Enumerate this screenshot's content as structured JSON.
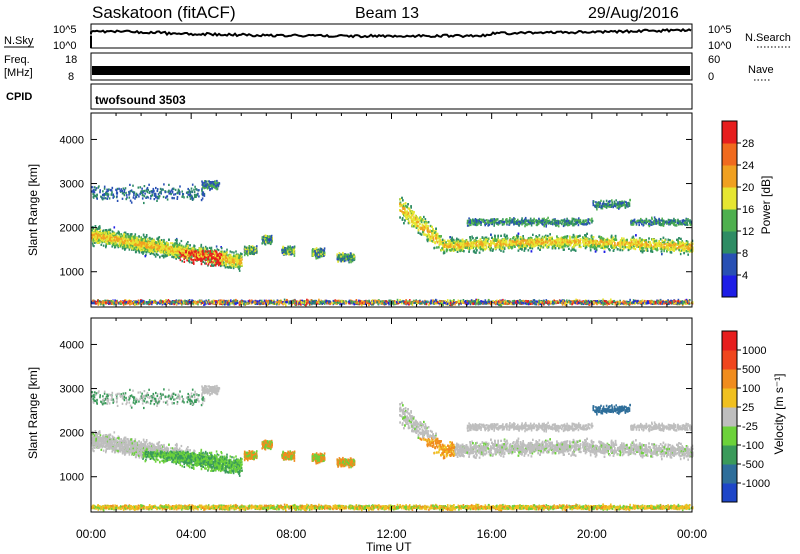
{
  "header": {
    "title": "Saskatoon (fitACF)",
    "beam": "Beam 13",
    "date": "29/Aug/2016"
  },
  "noise_panel": {
    "left_label": "N.Sky",
    "left_ticks": [
      "10^5",
      "10^0"
    ],
    "right_label": "N.Search",
    "right_ticks": [
      "10^5",
      "10^0"
    ]
  },
  "freq_panel": {
    "left_label_1": "Freq.",
    "left_label_2": "[MHz]",
    "left_ticks": [
      "18",
      "8"
    ],
    "right_label": "Nave",
    "right_ticks": [
      "60",
      "0"
    ]
  },
  "cpid": {
    "label": "CPID",
    "value": "twofsound 3503"
  },
  "chart_data": [
    {
      "type": "heatmap",
      "name": "Power",
      "ylabel": "Slant Range [km]",
      "xlabel": "Time UT",
      "ylim": [
        200,
        4600
      ],
      "yticks": [
        "1000",
        "2000",
        "3000",
        "4000"
      ],
      "x": [
        "00:00",
        "04:00",
        "08:00",
        "12:00",
        "16:00",
        "20:00",
        "00:00"
      ],
      "colorbar_label": "Power [dB]",
      "colorbar_ticks": [
        "4",
        "8",
        "12",
        "16",
        "20",
        "24",
        "28"
      ],
      "colors": [
        "#1e1ee6",
        "#2850b4",
        "#2e8c64",
        "#4fb04f",
        "#e6e632",
        "#f0a020",
        "#f06a1e",
        "#e61e1e"
      ]
    },
    {
      "type": "heatmap",
      "name": "Velocity",
      "ylabel": "Slant Range [km]",
      "xlabel": "Time UT",
      "ylim": [
        200,
        4600
      ],
      "yticks": [
        "1000",
        "2000",
        "3000",
        "4000"
      ],
      "x": [
        "00:00",
        "04:00",
        "08:00",
        "12:00",
        "16:00",
        "20:00",
        "00:00"
      ],
      "colorbar_label": "Velocity [m s⁻¹]",
      "colorbar_ticks": [
        "1000",
        "500",
        "100",
        "25",
        "-25",
        "-100",
        "-500",
        "-1000"
      ],
      "colors": [
        "#1e46c8",
        "#2e6e9a",
        "#3a9a5a",
        "#6cd23a",
        "#bebebe",
        "#f0c020",
        "#f08c1e",
        "#f0461e",
        "#e61e1e"
      ]
    }
  ],
  "time_axis": {
    "label": "Time UT",
    "ticks": [
      "00:00",
      "04:00",
      "08:00",
      "12:00",
      "16:00",
      "20:00",
      "00:00"
    ]
  }
}
